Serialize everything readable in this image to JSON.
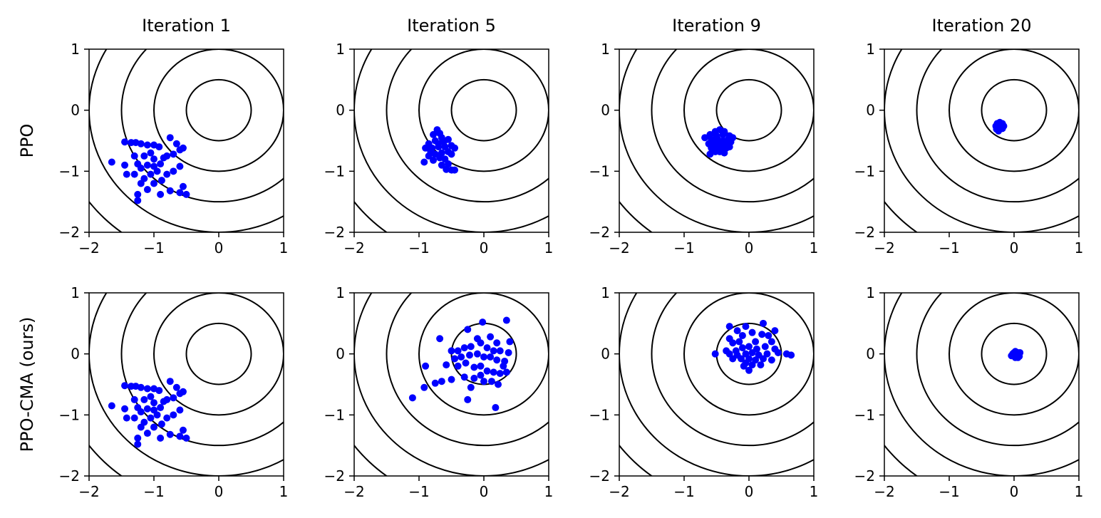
{
  "figure": {
    "column_titles": [
      "Iteration 1",
      "Iteration 5",
      "Iteration 9",
      "Iteration 20"
    ],
    "row_labels": [
      "PPO",
      "PPO-CMA (ours)"
    ],
    "colors": {
      "points": "#0000ff",
      "contours": "#000000",
      "axes": "#000000"
    }
  },
  "chart_data": [
    {
      "type": "scatter",
      "row": "PPO",
      "column": "Iteration 1",
      "xlim": [
        -2,
        1
      ],
      "ylim": [
        -2,
        1
      ],
      "xticks": [
        "−2",
        "−1",
        "0",
        "1"
      ],
      "yticks": [
        "1",
        "0",
        "−1",
        "−2"
      ],
      "contour_center": [
        0,
        0
      ],
      "contour_radii": [
        0.5,
        1.0,
        1.5,
        2.0,
        2.5
      ],
      "points": [
        [
          -1.65,
          -0.85
        ],
        [
          -1.45,
          -0.52
        ],
        [
          -1.35,
          -0.53
        ],
        [
          -1.28,
          -0.53
        ],
        [
          -1.2,
          -0.55
        ],
        [
          -1.1,
          -0.57
        ],
        [
          -1.0,
          -0.57
        ],
        [
          -0.92,
          -0.6
        ],
        [
          -0.75,
          -0.45
        ],
        [
          -0.65,
          -0.55
        ],
        [
          -0.6,
          -0.65
        ],
        [
          -0.55,
          -0.62
        ],
        [
          -0.7,
          -0.72
        ],
        [
          -0.8,
          -0.75
        ],
        [
          -1.05,
          -0.7
        ],
        [
          -1.15,
          -0.75
        ],
        [
          -1.3,
          -0.75
        ],
        [
          -1.45,
          -0.9
        ],
        [
          -1.42,
          -1.05
        ],
        [
          -1.3,
          -1.05
        ],
        [
          -1.2,
          -0.95
        ],
        [
          -1.1,
          -0.9
        ],
        [
          -1.0,
          -0.8
        ],
        [
          -0.9,
          -0.88
        ],
        [
          -0.95,
          -1.0
        ],
        [
          -1.05,
          -1.05
        ],
        [
          -1.15,
          -1.12
        ],
        [
          -1.2,
          -1.2
        ],
        [
          -1.1,
          -1.3
        ],
        [
          -1.0,
          -1.2
        ],
        [
          -0.88,
          -1.15
        ],
        [
          -0.8,
          -1.05
        ],
        [
          -0.7,
          -1.0
        ],
        [
          -0.6,
          -0.92
        ],
        [
          -0.55,
          -1.25
        ],
        [
          -0.5,
          -1.38
        ],
        [
          -0.6,
          -1.35
        ],
        [
          -0.75,
          -1.32
        ],
        [
          -0.9,
          -1.38
        ],
        [
          -1.25,
          -1.38
        ],
        [
          -1.25,
          -1.48
        ],
        [
          -1.0,
          -0.92
        ],
        [
          -0.85,
          -0.78
        ],
        [
          -1.25,
          -0.88
        ]
      ]
    },
    {
      "type": "scatter",
      "row": "PPO",
      "column": "Iteration 5",
      "xlim": [
        -2,
        1
      ],
      "ylim": [
        -2,
        1
      ],
      "xticks": [
        "−2",
        "−1",
        "0",
        "1"
      ],
      "yticks": [
        "1",
        "0",
        "−1",
        "−2"
      ],
      "contour_center": [
        0,
        0
      ],
      "contour_radii": [
        0.5,
        1.0,
        1.5,
        2.0,
        2.5
      ],
      "points": [
        [
          -0.72,
          -0.32
        ],
        [
          -0.78,
          -0.4
        ],
        [
          -0.68,
          -0.38
        ],
        [
          -0.65,
          -0.45
        ],
        [
          -0.85,
          -0.55
        ],
        [
          -0.75,
          -0.5
        ],
        [
          -0.62,
          -0.52
        ],
        [
          -0.55,
          -0.48
        ],
        [
          -0.9,
          -0.62
        ],
        [
          -0.8,
          -0.62
        ],
        [
          -0.7,
          -0.6
        ],
        [
          -0.6,
          -0.6
        ],
        [
          -0.5,
          -0.58
        ],
        [
          -0.45,
          -0.62
        ],
        [
          -0.85,
          -0.75
        ],
        [
          -0.75,
          -0.72
        ],
        [
          -0.65,
          -0.7
        ],
        [
          -0.55,
          -0.68
        ],
        [
          -0.5,
          -0.72
        ],
        [
          -0.92,
          -0.85
        ],
        [
          -0.78,
          -0.82
        ],
        [
          -0.68,
          -0.78
        ],
        [
          -0.6,
          -0.8
        ],
        [
          -0.55,
          -0.88
        ],
        [
          -0.65,
          -0.9
        ],
        [
          -0.58,
          -0.97
        ],
        [
          -0.5,
          -0.98
        ],
        [
          -0.45,
          -0.98
        ],
        [
          -0.7,
          -0.55
        ],
        [
          -0.82,
          -0.68
        ]
      ]
    },
    {
      "type": "scatter",
      "row": "PPO",
      "column": "Iteration 9",
      "xlim": [
        -2,
        1
      ],
      "ylim": [
        -2,
        1
      ],
      "xticks": [
        "−2",
        "−1",
        "0",
        "1"
      ],
      "yticks": [
        "1",
        "0",
        "−1",
        "−2"
      ],
      "contour_center": [
        0,
        0
      ],
      "contour_radii": [
        0.5,
        1.0,
        1.5,
        2.0,
        2.5
      ],
      "points": [
        [
          -0.45,
          -0.32
        ],
        [
          -0.52,
          -0.35
        ],
        [
          -0.38,
          -0.35
        ],
        [
          -0.6,
          -0.4
        ],
        [
          -0.5,
          -0.42
        ],
        [
          -0.4,
          -0.4
        ],
        [
          -0.3,
          -0.42
        ],
        [
          -0.68,
          -0.45
        ],
        [
          -0.58,
          -0.48
        ],
        [
          -0.48,
          -0.48
        ],
        [
          -0.4,
          -0.5
        ],
        [
          -0.32,
          -0.48
        ],
        [
          -0.25,
          -0.45
        ],
        [
          -0.62,
          -0.55
        ],
        [
          -0.55,
          -0.55
        ],
        [
          -0.45,
          -0.56
        ],
        [
          -0.35,
          -0.55
        ],
        [
          -0.28,
          -0.52
        ],
        [
          -0.58,
          -0.62
        ],
        [
          -0.5,
          -0.62
        ],
        [
          -0.42,
          -0.62
        ],
        [
          -0.35,
          -0.62
        ],
        [
          -0.52,
          -0.68
        ],
        [
          -0.45,
          -0.68
        ],
        [
          -0.6,
          -0.72
        ],
        [
          -0.38,
          -0.7
        ],
        [
          -0.48,
          -0.58
        ],
        [
          -0.3,
          -0.6
        ]
      ]
    },
    {
      "type": "scatter",
      "row": "PPO",
      "column": "Iteration 20",
      "xlim": [
        -2,
        1
      ],
      "ylim": [
        -2,
        1
      ],
      "xticks": [
        "−2",
        "−1",
        "0",
        "1"
      ],
      "yticks": [
        "1",
        "0",
        "−1",
        "−2"
      ],
      "contour_center": [
        0,
        0
      ],
      "contour_radii": [
        0.5,
        1.0,
        1.5,
        2.0,
        2.5
      ],
      "points": [
        [
          -0.22,
          -0.2
        ],
        [
          -0.18,
          -0.22
        ],
        [
          -0.26,
          -0.22
        ],
        [
          -0.2,
          -0.25
        ],
        [
          -0.28,
          -0.26
        ],
        [
          -0.16,
          -0.26
        ],
        [
          -0.24,
          -0.28
        ],
        [
          -0.2,
          -0.3
        ],
        [
          -0.27,
          -0.31
        ],
        [
          -0.18,
          -0.3
        ],
        [
          -0.24,
          -0.34
        ],
        [
          -0.21,
          -0.27
        ]
      ]
    },
    {
      "type": "scatter",
      "row": "PPO-CMA (ours)",
      "column": "Iteration 1",
      "xlim": [
        -2,
        1
      ],
      "ylim": [
        -2,
        1
      ],
      "xticks": [
        "−2",
        "−1",
        "0",
        "1"
      ],
      "yticks": [
        "1",
        "0",
        "−1",
        "−2"
      ],
      "contour_center": [
        0,
        0
      ],
      "contour_radii": [
        0.5,
        1.0,
        1.5,
        2.0,
        2.5
      ],
      "points": [
        [
          -1.65,
          -0.85
        ],
        [
          -1.45,
          -0.52
        ],
        [
          -1.35,
          -0.53
        ],
        [
          -1.28,
          -0.53
        ],
        [
          -1.2,
          -0.55
        ],
        [
          -1.1,
          -0.57
        ],
        [
          -1.0,
          -0.57
        ],
        [
          -0.92,
          -0.6
        ],
        [
          -0.75,
          -0.45
        ],
        [
          -0.65,
          -0.55
        ],
        [
          -0.6,
          -0.65
        ],
        [
          -0.55,
          -0.62
        ],
        [
          -0.7,
          -0.72
        ],
        [
          -0.8,
          -0.75
        ],
        [
          -1.05,
          -0.7
        ],
        [
          -1.15,
          -0.75
        ],
        [
          -1.3,
          -0.75
        ],
        [
          -1.45,
          -0.9
        ],
        [
          -1.42,
          -1.05
        ],
        [
          -1.3,
          -1.05
        ],
        [
          -1.2,
          -0.95
        ],
        [
          -1.1,
          -0.9
        ],
        [
          -1.0,
          -0.8
        ],
        [
          -0.9,
          -0.88
        ],
        [
          -0.95,
          -1.0
        ],
        [
          -1.05,
          -1.05
        ],
        [
          -1.15,
          -1.12
        ],
        [
          -1.2,
          -1.2
        ],
        [
          -1.1,
          -1.3
        ],
        [
          -1.0,
          -1.2
        ],
        [
          -0.88,
          -1.15
        ],
        [
          -0.8,
          -1.05
        ],
        [
          -0.7,
          -1.0
        ],
        [
          -0.6,
          -0.92
        ],
        [
          -0.55,
          -1.25
        ],
        [
          -0.5,
          -1.38
        ],
        [
          -0.6,
          -1.35
        ],
        [
          -0.75,
          -1.32
        ],
        [
          -0.9,
          -1.38
        ],
        [
          -1.25,
          -1.38
        ],
        [
          -1.25,
          -1.48
        ],
        [
          -1.0,
          -0.92
        ],
        [
          -0.85,
          -0.78
        ],
        [
          -1.25,
          -0.88
        ]
      ]
    },
    {
      "type": "scatter",
      "row": "PPO-CMA (ours)",
      "column": "Iteration 5",
      "xlim": [
        -2,
        1
      ],
      "ylim": [
        -2,
        1
      ],
      "xticks": [
        "−2",
        "−1",
        "0",
        "1"
      ],
      "yticks": [
        "1",
        "0",
        "−1",
        "−2"
      ],
      "contour_center": [
        0,
        0
      ],
      "contour_radii": [
        0.5,
        1.0,
        1.5,
        2.0,
        2.5
      ],
      "points": [
        [
          0.35,
          0.55
        ],
        [
          -0.02,
          0.52
        ],
        [
          -0.25,
          0.4
        ],
        [
          0.1,
          0.28
        ],
        [
          -0.1,
          0.25
        ],
        [
          0.2,
          0.18
        ],
        [
          0.4,
          0.2
        ],
        [
          -0.68,
          0.25
        ],
        [
          -0.5,
          0.05
        ],
        [
          -0.4,
          0.05
        ],
        [
          -0.3,
          0.1
        ],
        [
          -0.2,
          0.12
        ],
        [
          -0.05,
          0.18
        ],
        [
          0.05,
          0.1
        ],
        [
          0.15,
          0.05
        ],
        [
          0.25,
          0.05
        ],
        [
          0.38,
          0.02
        ],
        [
          -0.45,
          -0.08
        ],
        [
          -0.35,
          -0.05
        ],
        [
          -0.22,
          -0.02
        ],
        [
          -0.1,
          0.0
        ],
        [
          0.0,
          -0.05
        ],
        [
          0.1,
          -0.05
        ],
        [
          0.2,
          -0.1
        ],
        [
          0.32,
          -0.12
        ],
        [
          -0.9,
          -0.2
        ],
        [
          -0.58,
          -0.18
        ],
        [
          -0.4,
          -0.2
        ],
        [
          -0.28,
          -0.15
        ],
        [
          -0.15,
          -0.22
        ],
        [
          -0.05,
          -0.2
        ],
        [
          0.05,
          -0.28
        ],
        [
          0.15,
          -0.3
        ],
        [
          0.25,
          -0.32
        ],
        [
          0.35,
          -0.3
        ],
        [
          -0.65,
          -0.45
        ],
        [
          -0.5,
          -0.42
        ],
        [
          -0.3,
          -0.38
        ],
        [
          -0.15,
          -0.4
        ],
        [
          0.0,
          -0.45
        ],
        [
          0.12,
          -0.45
        ],
        [
          0.22,
          -0.5
        ],
        [
          -0.75,
          -0.48
        ],
        [
          -0.92,
          -0.55
        ],
        [
          -0.2,
          -0.55
        ],
        [
          -1.1,
          -0.72
        ],
        [
          -0.25,
          -0.75
        ],
        [
          0.18,
          -0.88
        ],
        [
          -0.05,
          -0.35
        ],
        [
          0.3,
          -0.2
        ]
      ]
    },
    {
      "type": "scatter",
      "row": "PPO-CMA (ours)",
      "column": "Iteration 9",
      "xlim": [
        -2,
        1
      ],
      "ylim": [
        -2,
        1
      ],
      "xticks": [
        "−2",
        "−1",
        "0",
        "1"
      ],
      "yticks": [
        "1",
        "0",
        "−1",
        "−2"
      ],
      "contour_center": [
        0,
        0
      ],
      "contour_radii": [
        0.5,
        1.0,
        1.5,
        2.0,
        2.5
      ],
      "points": [
        [
          -0.3,
          0.45
        ],
        [
          -0.05,
          0.45
        ],
        [
          0.22,
          0.5
        ],
        [
          -0.18,
          0.38
        ],
        [
          0.4,
          0.38
        ],
        [
          -0.1,
          0.3
        ],
        [
          0.2,
          0.32
        ],
        [
          0.3,
          0.3
        ],
        [
          -0.3,
          0.25
        ],
        [
          -0.25,
          0.18
        ],
        [
          0.1,
          0.2
        ],
        [
          0.35,
          0.2
        ],
        [
          -0.35,
          0.05
        ],
        [
          -0.2,
          0.05
        ],
        [
          -0.1,
          0.1
        ],
        [
          0.0,
          0.12
        ],
        [
          0.12,
          0.08
        ],
        [
          0.25,
          0.12
        ],
        [
          0.4,
          0.08
        ],
        [
          -0.52,
          0.0
        ],
        [
          -0.3,
          0.0
        ],
        [
          -0.18,
          -0.02
        ],
        [
          -0.05,
          0.0
        ],
        [
          0.05,
          0.02
        ],
        [
          0.15,
          -0.02
        ],
        [
          0.28,
          0.0
        ],
        [
          0.45,
          0.02
        ],
        [
          0.58,
          0.0
        ],
        [
          0.65,
          -0.02
        ],
        [
          -0.25,
          -0.08
        ],
        [
          -0.12,
          -0.08
        ],
        [
          0.0,
          -0.08
        ],
        [
          0.1,
          -0.1
        ],
        [
          0.22,
          -0.08
        ],
        [
          0.35,
          -0.1
        ],
        [
          -0.05,
          -0.15
        ],
        [
          0.05,
          -0.18
        ],
        [
          0.18,
          -0.18
        ],
        [
          0.0,
          -0.27
        ],
        [
          -0.15,
          0.2
        ],
        [
          0.05,
          0.35
        ],
        [
          -0.08,
          -0.2
        ]
      ]
    },
    {
      "type": "scatter",
      "row": "PPO-CMA (ours)",
      "column": "Iteration 20",
      "xlim": [
        -2,
        1
      ],
      "ylim": [
        -2,
        1
      ],
      "xticks": [
        "−2",
        "−1",
        "0",
        "1"
      ],
      "yticks": [
        "1",
        "0",
        "−1",
        "−2"
      ],
      "contour_center": [
        0,
        0
      ],
      "contour_radii": [
        0.5,
        1.0,
        1.5,
        2.0,
        2.5
      ],
      "points": [
        [
          0.02,
          0.04
        ],
        [
          0.06,
          0.02
        ],
        [
          -0.02,
          0.0
        ],
        [
          0.04,
          -0.02
        ],
        [
          0.08,
          -0.04
        ],
        [
          -0.04,
          -0.03
        ],
        [
          0.02,
          -0.06
        ],
        [
          0.06,
          -0.06
        ],
        [
          0.0,
          0.02
        ],
        [
          0.09,
          0.02
        ]
      ]
    }
  ]
}
